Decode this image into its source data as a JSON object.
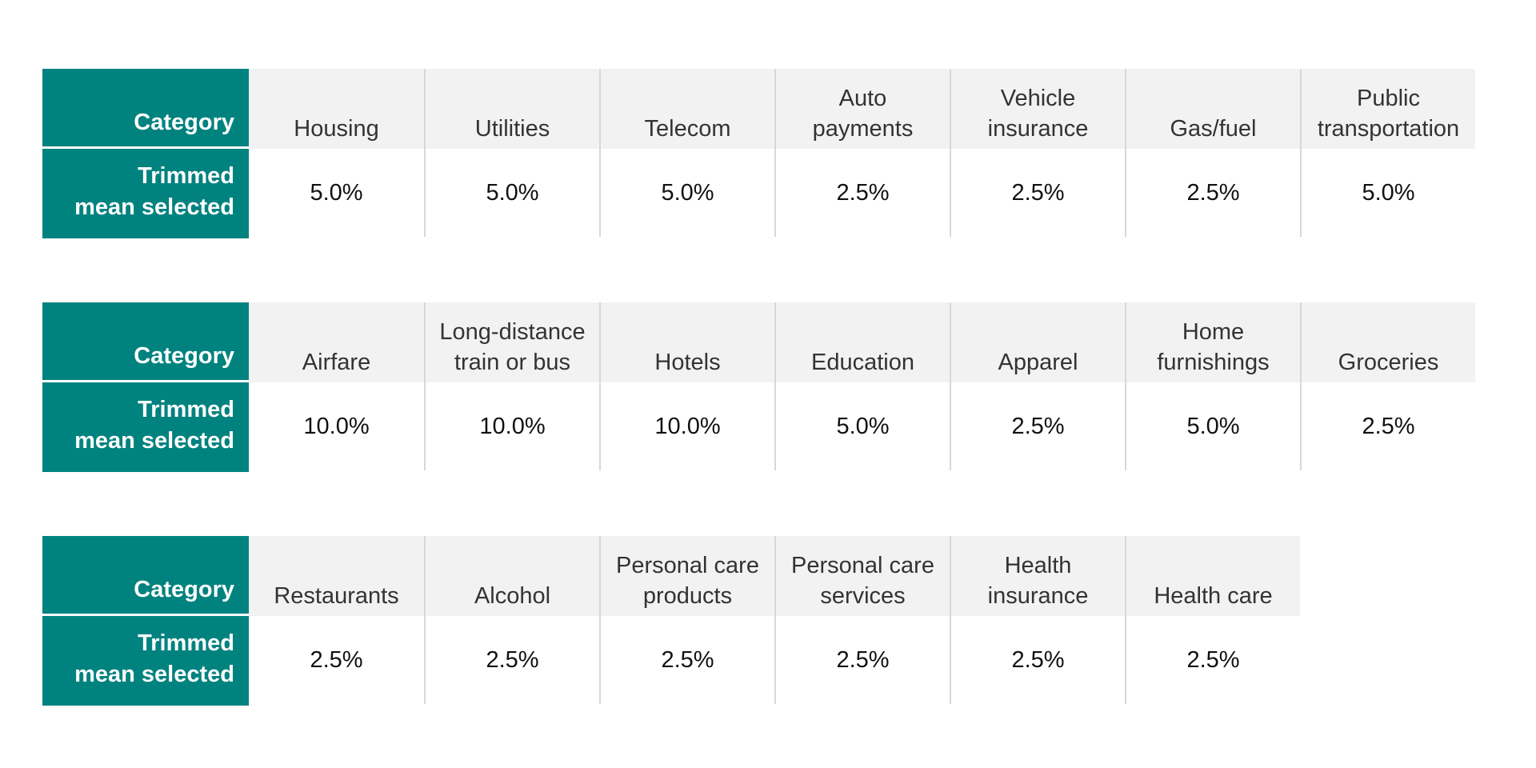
{
  "header_labels": {
    "category": "Category",
    "trimmed": "Trimmed\nmean selected"
  },
  "tables": [
    {
      "categories": [
        "Housing",
        "Utilities",
        "Telecom",
        "Auto\npayments",
        "Vehicle\ninsurance",
        "Gas/fuel",
        "Public\ntransportation"
      ],
      "values": [
        "5.0%",
        "5.0%",
        "5.0%",
        "2.5%",
        "2.5%",
        "2.5%",
        "5.0%"
      ]
    },
    {
      "categories": [
        "Airfare",
        "Long-distance\ntrain or bus",
        "Hotels",
        "Education",
        "Apparel",
        "Home\nfurnishings",
        "Groceries"
      ],
      "values": [
        "10.0%",
        "10.0%",
        "10.0%",
        "5.0%",
        "2.5%",
        "5.0%",
        "2.5%"
      ]
    },
    {
      "categories": [
        "Restaurants",
        "Alcohol",
        "Personal care\nproducts",
        "Personal care\nservices",
        "Health\ninsurance",
        "Health care"
      ],
      "values": [
        "2.5%",
        "2.5%",
        "2.5%",
        "2.5%",
        "2.5%",
        "2.5%"
      ]
    }
  ],
  "colors": {
    "header_bg": "#00827f",
    "category_bg": "#f2f2f2",
    "divider": "#d8d8d8"
  }
}
